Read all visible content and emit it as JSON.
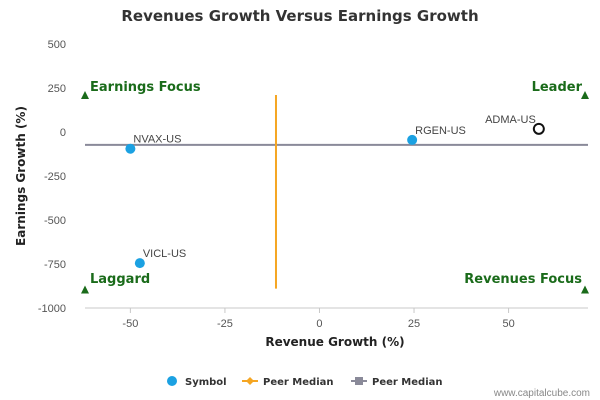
{
  "chart_data": {
    "type": "scatter",
    "title": "Revenues Growth Versus Earnings Growth",
    "xlabel": "Revenue Growth (%)",
    "ylabel": "Earnings Growth (%)",
    "xlim": [
      -62,
      71
    ],
    "ylim": [
      -1000,
      500
    ],
    "x_ticks": [
      -50,
      -25,
      0,
      25,
      50
    ],
    "y_ticks": [
      500,
      250,
      0,
      -250,
      -500,
      -750,
      -1000
    ],
    "grid": false,
    "points": [
      {
        "label": "NVAX-US",
        "x": -50,
        "y": -95,
        "style": "filled"
      },
      {
        "label": "RGEN-US",
        "x": 24.5,
        "y": -45,
        "style": "filled"
      },
      {
        "label": "VICL-US",
        "x": -47.5,
        "y": -745,
        "style": "filled"
      },
      {
        "label": "ADMA-US",
        "x": 58,
        "y": 18,
        "style": "open"
      }
    ],
    "peer_median_revenue_growth": -11.5,
    "peer_median_earnings_growth": -73,
    "quadrants": {
      "top_left": "Earnings Focus",
      "top_right": "Leader",
      "bottom_left": "Laggard",
      "bottom_right": "Revenues Focus"
    },
    "legend": [
      {
        "name": "Symbol",
        "symbol": "circle",
        "color": "#1ba1e2"
      },
      {
        "name": "Peer Median",
        "symbol": "diamond",
        "color": "#f5a623"
      },
      {
        "name": "Peer Median",
        "symbol": "square",
        "color": "#8a8a99"
      }
    ]
  },
  "credit": "www.capitalcube.com",
  "colors": {
    "point": "#1ba1e2",
    "open_point": "#111111",
    "median_vertical": "#f5a623",
    "median_horizontal": "#8a8a99",
    "quadrant_text": "#1a6b1a",
    "marker": "#1a6b1a"
  }
}
